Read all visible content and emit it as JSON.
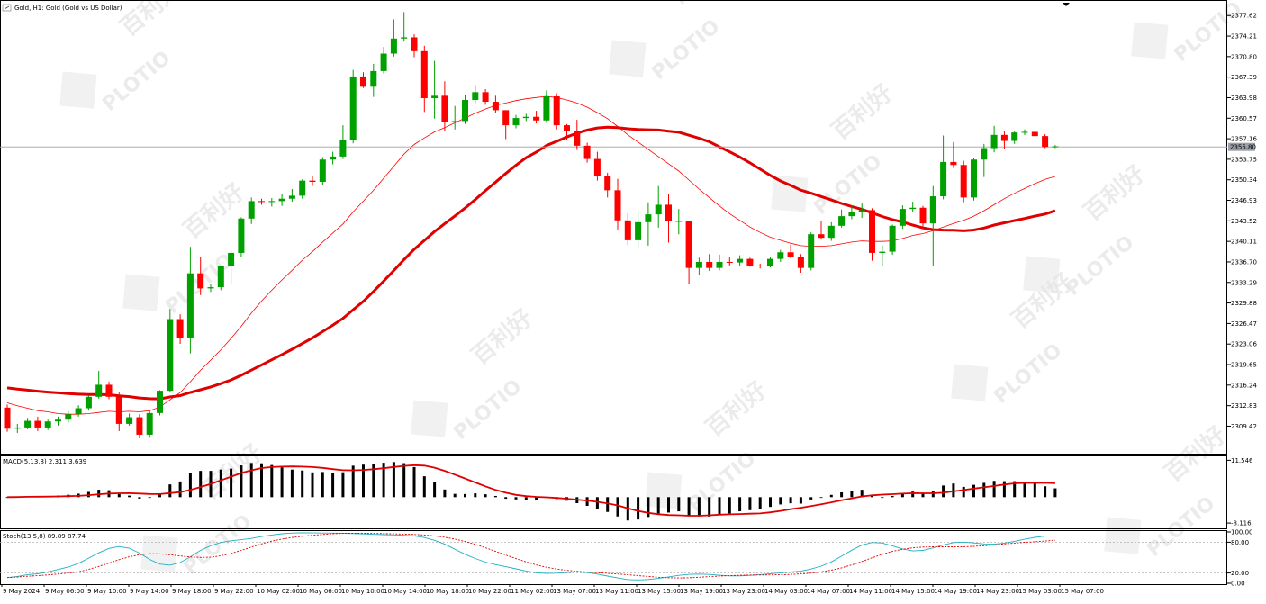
{
  "chart_title": "Gold, H1:  Gold (Gold vs US Dollar)",
  "watermark_text": "PLOTIO",
  "watermark_cn": "百利好",
  "current_price_label": "2355.80",
  "price_panel": {
    "ylim": [
      2305.9,
      2379.0
    ],
    "ticks": [
      "2377.62",
      "2374.21",
      "2370.80",
      "2367.39",
      "2363.98",
      "2360.57",
      "2357.16",
      "2353.75",
      "2350.34",
      "2346.93",
      "2343.52",
      "2340.11",
      "2336.70",
      "2333.29",
      "2329.88",
      "2326.47",
      "2323.06",
      "2319.65",
      "2316.24",
      "2312.83",
      "2309.42"
    ],
    "current_price": 2355.8
  },
  "macd_panel": {
    "label": "MACD(5,13,8) 2.311 3.639",
    "ticks": [
      "11.546",
      "-8.116"
    ],
    "ylim": [
      -9.5,
      12.5
    ]
  },
  "stoch_panel": {
    "label": "Stoch(13,5,8) 89.89 87.74",
    "ticks": [
      "100.00",
      "80.00",
      "20.00",
      "0.00"
    ],
    "ylim": [
      0,
      100
    ]
  },
  "x_labels": [
    "9 May 2024",
    "9 May 06:00",
    "9 May 10:00",
    "9 May 14:00",
    "9 May 18:00",
    "9 May 22:00",
    "10 May 02:00",
    "10 May 06:00",
    "10 May 10:00",
    "10 May 14:00",
    "10 May 18:00",
    "10 May 22:00",
    "11 May 02:00",
    "13 May 07:00",
    "13 May 11:00",
    "13 May 15:00",
    "13 May 19:00",
    "13 May 23:00",
    "14 May 03:00",
    "14 May 07:00",
    "14 May 11:00",
    "14 May 15:00",
    "14 May 19:00",
    "14 May 23:00",
    "15 May 03:00",
    "15 May 07:00"
  ],
  "colors": {
    "bull": "#00a000",
    "bear": "#ff0000",
    "ma_fast": "#ff0000",
    "ma_slow": "#e00000",
    "macd_bar": "#000000",
    "signal": "#e00000",
    "stoch_main": "#20b0c0",
    "stoch_signal": "#e00000",
    "grid": "#808080"
  },
  "chart_data": {
    "type": "candlestick",
    "timeframe": "H1",
    "candles": [
      [
        2312.5,
        2313.0,
        2308.5,
        2309.0
      ],
      [
        2309.0,
        2309.8,
        2308.3,
        2309.2
      ],
      [
        2309.2,
        2310.8,
        2308.9,
        2310.3
      ],
      [
        2310.3,
        2311.0,
        2308.6,
        2309.2
      ],
      [
        2309.2,
        2310.5,
        2308.8,
        2310.2
      ],
      [
        2310.2,
        2311.0,
        2309.5,
        2310.5
      ],
      [
        2310.5,
        2311.9,
        2310.0,
        2311.4
      ],
      [
        2311.4,
        2312.9,
        2311.0,
        2312.4
      ],
      [
        2312.4,
        2314.5,
        2312.0,
        2314.3
      ],
      [
        2314.3,
        2318.6,
        2314.0,
        2316.3
      ],
      [
        2316.3,
        2316.8,
        2313.9,
        2314.3
      ],
      [
        2314.3,
        2315.0,
        2308.6,
        2309.8
      ],
      [
        2309.8,
        2311.5,
        2309.5,
        2310.9
      ],
      [
        2310.9,
        2311.4,
        2307.4,
        2308.0
      ],
      [
        2308.0,
        2312.2,
        2307.5,
        2311.6
      ],
      [
        2311.6,
        2315.4,
        2311.2,
        2315.3
      ],
      [
        2315.3,
        2328.9,
        2315.0,
        2327.2
      ],
      [
        2327.2,
        2328.0,
        2323.1,
        2324.0
      ],
      [
        2324.0,
        2339.2,
        2321.5,
        2334.8
      ],
      [
        2334.8,
        2337.5,
        2331.2,
        2332.3
      ],
      [
        2332.3,
        2333.0,
        2331.7,
        2332.5
      ],
      [
        2332.5,
        2336.1,
        2332.0,
        2336.0
      ],
      [
        2336.0,
        2338.5,
        2333.0,
        2338.2
      ],
      [
        2338.2,
        2344.1,
        2337.5,
        2343.9
      ],
      [
        2343.9,
        2347.4,
        2343.0,
        2346.8
      ],
      [
        2346.8,
        2347.2,
        2346.2,
        2346.7
      ],
      [
        2346.7,
        2347.3,
        2345.9,
        2346.8
      ],
      [
        2346.8,
        2348.0,
        2346.0,
        2347.2
      ],
      [
        2347.2,
        2348.8,
        2346.7,
        2347.7
      ],
      [
        2347.7,
        2350.4,
        2347.2,
        2350.2
      ],
      [
        2350.2,
        2351.0,
        2349.3,
        2350.0
      ],
      [
        2350.0,
        2354.1,
        2349.5,
        2353.7
      ],
      [
        2353.7,
        2355.0,
        2352.9,
        2354.2
      ],
      [
        2354.2,
        2359.4,
        2353.8,
        2356.9
      ],
      [
        2356.9,
        2368.6,
        2356.4,
        2367.5
      ],
      [
        2367.5,
        2368.2,
        2365.6,
        2365.8
      ],
      [
        2365.8,
        2369.6,
        2364.1,
        2368.4
      ],
      [
        2368.4,
        2372.4,
        2368.0,
        2371.3
      ],
      [
        2371.3,
        2377.0,
        2370.8,
        2373.8
      ],
      [
        2373.8,
        2378.2,
        2373.3,
        2374.0
      ],
      [
        2374.0,
        2374.5,
        2370.7,
        2371.7
      ],
      [
        2371.7,
        2372.6,
        2361.6,
        2363.9
      ],
      [
        2363.9,
        2370.1,
        2360.5,
        2364.3
      ],
      [
        2364.3,
        2366.7,
        2358.4,
        2359.9
      ],
      [
        2359.9,
        2362.6,
        2358.7,
        2360.1
      ],
      [
        2360.1,
        2364.4,
        2359.6,
        2363.6
      ],
      [
        2363.6,
        2366.1,
        2363.1,
        2364.9
      ],
      [
        2364.9,
        2365.4,
        2362.8,
        2363.3
      ],
      [
        2363.3,
        2364.3,
        2361.4,
        2361.9
      ],
      [
        2361.9,
        2361.9,
        2357.1,
        2359.4
      ],
      [
        2359.4,
        2361.1,
        2358.9,
        2360.6
      ],
      [
        2360.6,
        2361.3,
        2360.1,
        2360.8
      ],
      [
        2360.8,
        2361.8,
        2359.7,
        2360.2
      ],
      [
        2360.2,
        2365.2,
        2359.8,
        2364.2
      ],
      [
        2364.2,
        2364.7,
        2358.7,
        2359.4
      ],
      [
        2359.4,
        2359.6,
        2356.9,
        2358.4
      ],
      [
        2358.4,
        2360.3,
        2355.3,
        2356.0
      ],
      [
        2356.0,
        2356.5,
        2353.2,
        2353.8
      ],
      [
        2353.8,
        2355.0,
        2350.2,
        2351.0
      ],
      [
        2351.0,
        2351.5,
        2347.4,
        2348.6
      ],
      [
        2348.6,
        2350.5,
        2342.1,
        2343.6
      ],
      [
        2343.6,
        2344.8,
        2339.5,
        2340.3
      ],
      [
        2340.3,
        2345.0,
        2339.1,
        2343.3
      ],
      [
        2343.3,
        2346.6,
        2339.4,
        2344.6
      ],
      [
        2344.6,
        2349.3,
        2342.4,
        2346.2
      ],
      [
        2346.2,
        2347.9,
        2339.9,
        2343.5
      ],
      [
        2343.5,
        2345.5,
        2341.3,
        2343.5
      ],
      [
        2343.5,
        2343.5,
        2333.1,
        2335.7
      ],
      [
        2335.7,
        2337.4,
        2334.5,
        2336.7
      ],
      [
        2336.7,
        2338.0,
        2335.2,
        2335.7
      ],
      [
        2335.7,
        2337.9,
        2335.3,
        2336.7
      ],
      [
        2336.7,
        2337.5,
        2336.1,
        2336.6
      ],
      [
        2336.6,
        2337.8,
        2336.0,
        2337.2
      ],
      [
        2337.2,
        2337.4,
        2335.9,
        2336.1
      ],
      [
        2336.1,
        2336.4,
        2335.6,
        2336.0
      ],
      [
        2336.0,
        2337.5,
        2335.8,
        2337.2
      ],
      [
        2337.2,
        2338.7,
        2336.7,
        2338.3
      ],
      [
        2338.3,
        2339.6,
        2337.3,
        2337.5
      ],
      [
        2337.5,
        2338.0,
        2334.9,
        2335.7
      ],
      [
        2335.7,
        2341.6,
        2335.3,
        2341.3
      ],
      [
        2341.3,
        2343.5,
        2340.5,
        2340.7
      ],
      [
        2340.7,
        2343.3,
        2340.2,
        2342.7
      ],
      [
        2342.7,
        2345.4,
        2342.4,
        2344.3
      ],
      [
        2344.3,
        2346.0,
        2343.8,
        2345.0
      ],
      [
        2345.0,
        2346.4,
        2344.0,
        2345.3
      ],
      [
        2345.3,
        2345.6,
        2336.9,
        2338.2
      ],
      [
        2338.2,
        2339.4,
        2336.0,
        2338.4
      ],
      [
        2338.4,
        2342.9,
        2337.9,
        2342.7
      ],
      [
        2342.7,
        2346.1,
        2342.2,
        2345.5
      ],
      [
        2345.5,
        2346.7,
        2345.0,
        2345.7
      ],
      [
        2345.7,
        2346.0,
        2342.6,
        2343.1
      ],
      [
        2343.1,
        2349.3,
        2336.1,
        2347.6
      ],
      [
        2347.6,
        2357.7,
        2347.1,
        2353.3
      ],
      [
        2353.3,
        2356.6,
        2352.3,
        2352.8
      ],
      [
        2352.8,
        2353.5,
        2346.6,
        2347.4
      ],
      [
        2347.4,
        2354.0,
        2346.9,
        2353.7
      ],
      [
        2353.7,
        2356.3,
        2350.8,
        2355.6
      ],
      [
        2355.6,
        2359.3,
        2354.9,
        2357.8
      ],
      [
        2357.8,
        2358.5,
        2355.5,
        2356.8
      ],
      [
        2356.8,
        2358.5,
        2356.3,
        2358.2
      ],
      [
        2358.2,
        2358.7,
        2357.8,
        2358.3
      ],
      [
        2358.3,
        2358.5,
        2357.6,
        2357.6
      ],
      [
        2357.6,
        2357.9,
        2355.6,
        2355.8
      ],
      [
        2355.8,
        2356.1,
        2355.6,
        2355.9
      ]
    ],
    "ma_fast": [
      2313.3,
      2312.8,
      2312.4,
      2312.0,
      2311.8,
      2311.5,
      2311.4,
      2311.4,
      2311.5,
      2311.7,
      2311.9,
      2311.8,
      2311.9,
      2311.8,
      2312.0,
      2312.6,
      2313.8,
      2315.0,
      2316.8,
      2318.7,
      2320.4,
      2322.1,
      2324.0,
      2326.0,
      2328.2,
      2330.2,
      2332.0,
      2333.7,
      2335.3,
      2337.0,
      2338.4,
      2340.0,
      2341.5,
      2343.0,
      2345.0,
      2346.8,
      2348.6,
      2350.6,
      2352.6,
      2354.6,
      2356.2,
      2357.3,
      2358.3,
      2359.0,
      2359.8,
      2360.6,
      2361.4,
      2362.1,
      2362.7,
      2363.1,
      2363.5,
      2363.8,
      2364.0,
      2364.2,
      2364.0,
      2363.6,
      2363.1,
      2362.4,
      2361.5,
      2360.5,
      2359.2,
      2357.8,
      2356.6,
      2355.4,
      2354.2,
      2353.0,
      2351.8,
      2350.3,
      2348.8,
      2347.4,
      2346.0,
      2344.7,
      2343.6,
      2342.5,
      2341.6,
      2340.8,
      2340.3,
      2339.8,
      2339.4,
      2339.3,
      2339.3,
      2339.4,
      2339.7,
      2340.0,
      2340.2,
      2340.1,
      2340.1,
      2340.2,
      2340.6,
      2341.1,
      2341.4,
      2341.9,
      2342.5,
      2343.1,
      2343.6,
      2344.3,
      2345.2,
      2346.2,
      2347.2,
      2348.1,
      2348.9,
      2349.7,
      2350.4,
      2350.9
    ]
  }
}
